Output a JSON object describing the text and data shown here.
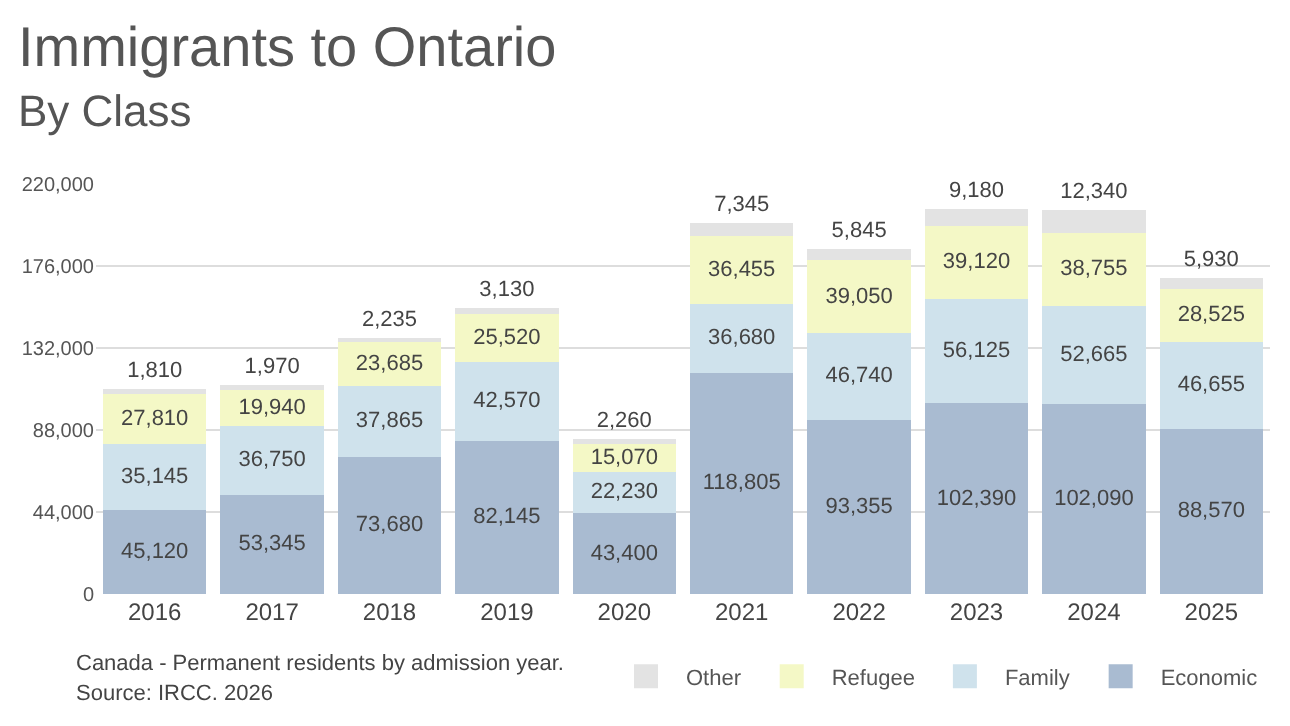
{
  "chart_data": {
    "type": "bar",
    "title": "Immigrants to Ontario",
    "subtitle": "By Class",
    "categories": [
      "2016",
      "2017",
      "2018",
      "2019",
      "2020",
      "2021",
      "2022",
      "2023",
      "2024",
      "2025"
    ],
    "stacked": true,
    "grid": "y",
    "legend": "bottom right",
    "ylim": [
      0,
      220000
    ],
    "yticks": [
      {
        "value": 0,
        "label": "0"
      },
      {
        "value": 44000,
        "label": "44,000"
      },
      {
        "value": 88000,
        "label": "88,000"
      },
      {
        "value": 132000,
        "label": "132,000"
      },
      {
        "value": 176000,
        "label": "176,000"
      },
      {
        "value": 220000,
        "label": "220,000"
      }
    ],
    "series": [
      {
        "name": "Economic",
        "color": "#a9bbd1",
        "values": [
          45120,
          53345,
          73680,
          82145,
          43400,
          118805,
          93355,
          102390,
          102090,
          88570
        ],
        "value_labels": [
          "45,120",
          "53,345",
          "73,680",
          "82,145",
          "43,400",
          "118,805",
          "93,355",
          "102,390",
          "102,090",
          "88,570"
        ]
      },
      {
        "name": "Family",
        "color": "#cfe2ec",
        "values": [
          35145,
          36750,
          37865,
          42570,
          22230,
          36680,
          46740,
          56125,
          52665,
          46655
        ],
        "value_labels": [
          "35,145",
          "36,750",
          "37,865",
          "42,570",
          "22,230",
          "36,680",
          "46,740",
          "56,125",
          "52,665",
          "46,655"
        ]
      },
      {
        "name": "Refugee",
        "color": "#f4f8c6",
        "values": [
          27810,
          19940,
          23685,
          25520,
          15070,
          36455,
          39050,
          39120,
          38755,
          28525
        ],
        "value_labels": [
          "27,810",
          "19,940",
          "23,685",
          "25,520",
          "15,070",
          "36,455",
          "39,050",
          "39,120",
          "38,755",
          "28,525"
        ]
      },
      {
        "name": "Other",
        "color": "#e3e3e3",
        "values": [
          1810,
          1970,
          2235,
          3130,
          2260,
          7345,
          5845,
          9180,
          12340,
          5930
        ],
        "value_labels": [
          "1,810",
          "1,970",
          "2,235",
          "3,130",
          "2,260",
          "7,345",
          "5,845",
          "9,180",
          "12,340",
          "5,930"
        ]
      }
    ],
    "annotations": [
      "Canada - Permanent residents by admission year.",
      "Source: IRCC. 2026"
    ]
  }
}
